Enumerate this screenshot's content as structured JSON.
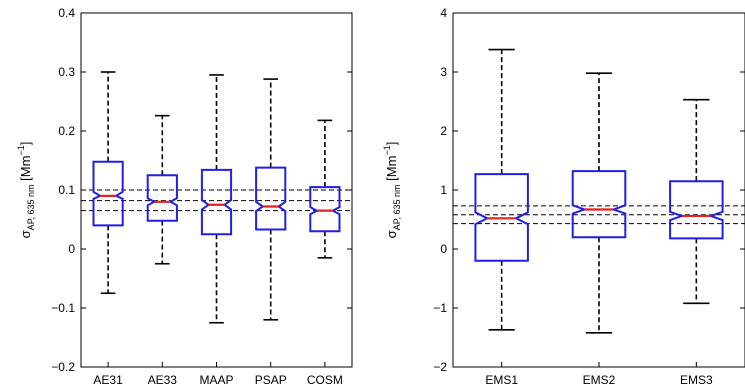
{
  "chart_data": [
    {
      "type": "boxplot",
      "notched": true,
      "ylabel": {
        "symbol": "σ",
        "subscript": "AP, 635 nm",
        "unit_open": " [Mm",
        "unit_sup": "−1",
        "unit_close": "]"
      },
      "ylim": [
        -0.2,
        0.4
      ],
      "yticks": [
        -0.2,
        -0.1,
        0,
        0.1,
        0.2,
        0.3,
        0.4
      ],
      "ytick_labels": [
        "−0.2",
        "−0.1",
        "0",
        "0.1",
        "0.2",
        "0.3",
        "0.4"
      ],
      "categories": [
        "AE31",
        "AE33",
        "MAAP",
        "PSAP",
        "COSM"
      ],
      "boxes": [
        {
          "whisker_low": -0.075,
          "q1": 0.04,
          "median": 0.09,
          "q3": 0.148,
          "whisker_high": 0.3,
          "notch_low": 0.085,
          "notch_high": 0.097
        },
        {
          "whisker_low": -0.025,
          "q1": 0.048,
          "median": 0.08,
          "q3": 0.125,
          "whisker_high": 0.226,
          "notch_low": 0.074,
          "notch_high": 0.086
        },
        {
          "whisker_low": -0.125,
          "q1": 0.025,
          "median": 0.075,
          "q3": 0.134,
          "whisker_high": 0.295,
          "notch_low": 0.067,
          "notch_high": 0.083
        },
        {
          "whisker_low": -0.12,
          "q1": 0.033,
          "median": 0.072,
          "q3": 0.138,
          "whisker_high": 0.288,
          "notch_low": 0.064,
          "notch_high": 0.08
        },
        {
          "whisker_low": -0.015,
          "q1": 0.03,
          "median": 0.065,
          "q3": 0.105,
          "whisker_high": 0.218,
          "notch_low": 0.059,
          "notch_high": 0.071
        }
      ],
      "reference_lines": [
        0.1,
        0.082,
        0.065
      ],
      "colors": {
        "box": "#1f1fe6",
        "median": "#e61f1f",
        "whisker": "#000000",
        "reference": "#000000"
      }
    },
    {
      "type": "boxplot",
      "notched": true,
      "ylabel": {
        "symbol": "σ",
        "subscript": "AP, 635 nm",
        "unit_open": " [Mm",
        "unit_sup": "−1",
        "unit_close": "]"
      },
      "ylim": [
        -2,
        4
      ],
      "yticks": [
        -2,
        -1,
        0,
        1,
        2,
        3,
        4
      ],
      "ytick_labels": [
        "−2",
        "−1",
        "0",
        "1",
        "2",
        "3",
        "4"
      ],
      "categories": [
        "EMS1",
        "EMS2",
        "EMS3"
      ],
      "boxes": [
        {
          "whisker_low": -1.37,
          "q1": -0.2,
          "median": 0.52,
          "q3": 1.27,
          "whisker_high": 3.38,
          "notch_low": 0.42,
          "notch_high": 0.62
        },
        {
          "whisker_low": -1.42,
          "q1": 0.2,
          "median": 0.67,
          "q3": 1.32,
          "whisker_high": 2.98,
          "notch_low": 0.6,
          "notch_high": 0.74
        },
        {
          "whisker_low": -0.92,
          "q1": 0.18,
          "median": 0.56,
          "q3": 1.15,
          "whisker_high": 2.53,
          "notch_low": 0.49,
          "notch_high": 0.63
        }
      ],
      "reference_lines": [
        0.73,
        0.58,
        0.43
      ],
      "colors": {
        "box": "#1f1fe6",
        "median": "#e61f1f",
        "whisker": "#000000",
        "reference": "#000000"
      }
    }
  ]
}
